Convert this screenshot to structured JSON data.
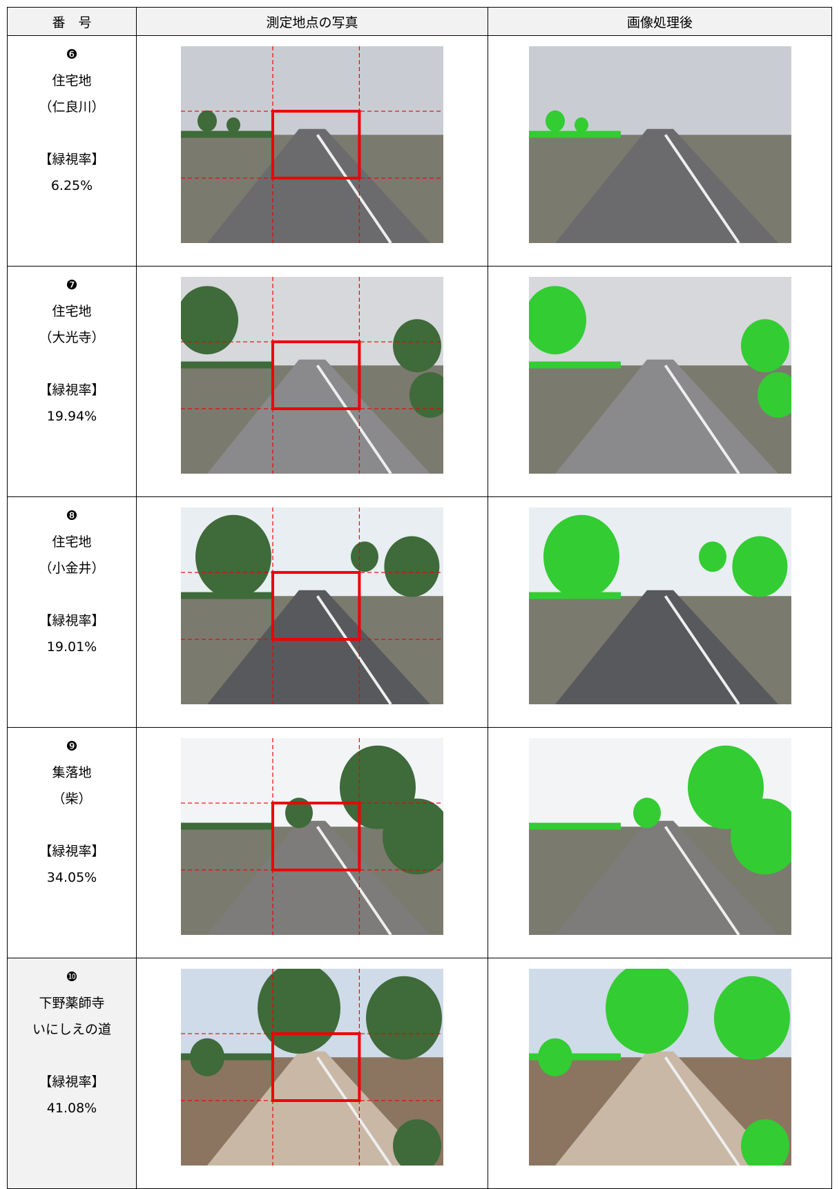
{
  "header": {
    "columns": [
      "番　号",
      "測定地点の写真",
      "画像処理後"
    ]
  },
  "rows": [
    {
      "number": "❻",
      "category": "住宅地",
      "place": "（仁良川）",
      "label": "【緑視率】",
      "rate": "6.25%"
    },
    {
      "number": "❼",
      "category": "住宅地",
      "place": "（大光寺）",
      "label": "【緑視率】",
      "rate": "19.94%"
    },
    {
      "number": "❽",
      "category": "住宅地",
      "place": "（小金井）",
      "label": "【緑視率】",
      "rate": "19.01%"
    },
    {
      "number": "❾",
      "category": "集落地",
      "place": "（柴）",
      "label": "【緑視率】",
      "rate": "34.05%"
    },
    {
      "number": "❿",
      "category": "下野薬師寺",
      "place": "いにしえの道",
      "label": "【緑視率】",
      "rate": "41.08%"
    }
  ]
}
